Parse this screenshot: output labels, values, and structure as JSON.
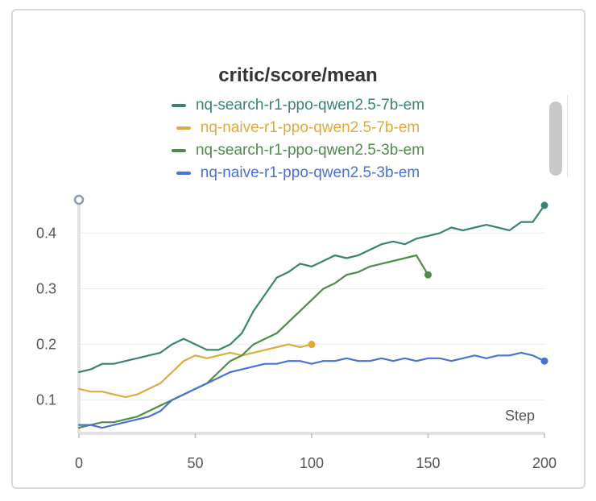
{
  "chart_data": {
    "type": "line",
    "title": "critic/score/mean",
    "xlabel": "Step",
    "ylabel": "",
    "xlim": [
      0,
      200
    ],
    "ylim": [
      0.04,
      0.46
    ],
    "x_ticks": [
      "0",
      "50",
      "100",
      "150",
      "200"
    ],
    "y_ticks": [
      "0.1",
      "0.2",
      "0.3",
      "0.4"
    ],
    "grid": true,
    "legend": "top",
    "series": [
      {
        "name": "nq-search-r1-ppo-qwen2.5-7b-em",
        "color": "#3a8276",
        "x": [
          0,
          5,
          10,
          15,
          20,
          25,
          30,
          35,
          40,
          45,
          50,
          55,
          60,
          65,
          70,
          75,
          80,
          85,
          90,
          95,
          100,
          105,
          110,
          115,
          120,
          125,
          130,
          135,
          140,
          145,
          150,
          155,
          160,
          165,
          170,
          175,
          180,
          185,
          190,
          195,
          200
        ],
        "y": [
          0.15,
          0.155,
          0.165,
          0.165,
          0.17,
          0.175,
          0.18,
          0.185,
          0.2,
          0.21,
          0.2,
          0.19,
          0.19,
          0.2,
          0.22,
          0.26,
          0.29,
          0.32,
          0.33,
          0.345,
          0.34,
          0.35,
          0.36,
          0.355,
          0.36,
          0.37,
          0.38,
          0.385,
          0.38,
          0.39,
          0.395,
          0.4,
          0.41,
          0.405,
          0.41,
          0.415,
          0.41,
          0.405,
          0.42,
          0.42,
          0.45
        ]
      },
      {
        "name": "nq-naive-r1-ppo-qwen2.5-7b-em",
        "color": "#dfaa3c",
        "x": [
          0,
          5,
          10,
          15,
          20,
          25,
          30,
          35,
          40,
          45,
          50,
          55,
          60,
          65,
          70,
          75,
          80,
          85,
          90,
          95,
          100
        ],
        "y": [
          0.12,
          0.115,
          0.115,
          0.11,
          0.105,
          0.11,
          0.12,
          0.13,
          0.15,
          0.17,
          0.18,
          0.175,
          0.18,
          0.185,
          0.18,
          0.185,
          0.19,
          0.195,
          0.2,
          0.195,
          0.2
        ]
      },
      {
        "name": "nq-search-r1-ppo-qwen2.5-3b-em",
        "color": "#4f8b4b",
        "x": [
          0,
          5,
          10,
          15,
          20,
          25,
          30,
          35,
          40,
          45,
          50,
          55,
          60,
          65,
          70,
          75,
          80,
          85,
          90,
          95,
          100,
          105,
          110,
          115,
          120,
          125,
          130,
          135,
          140,
          145,
          150
        ],
        "y": [
          0.05,
          0.055,
          0.06,
          0.06,
          0.065,
          0.07,
          0.08,
          0.09,
          0.1,
          0.11,
          0.12,
          0.13,
          0.15,
          0.17,
          0.18,
          0.2,
          0.21,
          0.22,
          0.24,
          0.26,
          0.28,
          0.3,
          0.31,
          0.325,
          0.33,
          0.34,
          0.345,
          0.35,
          0.355,
          0.36,
          0.325
        ]
      },
      {
        "name": "nq-naive-r1-ppo-qwen2.5-3b-em",
        "color": "#4a72d0",
        "x": [
          0,
          5,
          10,
          15,
          20,
          25,
          30,
          35,
          40,
          45,
          50,
          55,
          60,
          65,
          70,
          75,
          80,
          85,
          90,
          95,
          100,
          105,
          110,
          115,
          120,
          125,
          130,
          135,
          140,
          145,
          150,
          155,
          160,
          165,
          170,
          175,
          180,
          185,
          190,
          195,
          200
        ],
        "y": [
          0.055,
          0.055,
          0.05,
          0.055,
          0.06,
          0.065,
          0.07,
          0.08,
          0.1,
          0.11,
          0.12,
          0.13,
          0.14,
          0.15,
          0.155,
          0.16,
          0.165,
          0.165,
          0.17,
          0.17,
          0.165,
          0.17,
          0.17,
          0.175,
          0.17,
          0.17,
          0.175,
          0.17,
          0.175,
          0.17,
          0.175,
          0.175,
          0.17,
          0.175,
          0.18,
          0.175,
          0.18,
          0.18,
          0.185,
          0.18,
          0.17
        ]
      }
    ]
  }
}
